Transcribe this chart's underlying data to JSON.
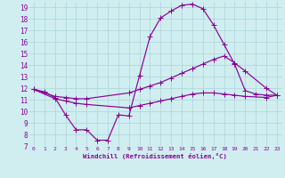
{
  "xlabel": "Windchill (Refroidissement éolien,°C)",
  "xlim": [
    -0.5,
    23.5
  ],
  "ylim": [
    7,
    19.5
  ],
  "xticks": [
    0,
    1,
    2,
    3,
    4,
    5,
    6,
    7,
    8,
    9,
    10,
    11,
    12,
    13,
    14,
    15,
    16,
    17,
    18,
    19,
    20,
    21,
    22,
    23
  ],
  "yticks": [
    7,
    8,
    9,
    10,
    11,
    12,
    13,
    14,
    15,
    16,
    17,
    18,
    19
  ],
  "bg_color": "#d0eef0",
  "line_color": "#880099",
  "grid_color": "#b0d8dc",
  "line1_x": [
    0,
    1,
    2,
    3,
    4,
    5,
    6,
    7,
    8,
    9,
    10,
    11,
    12,
    13,
    14,
    15,
    16,
    17,
    18,
    19,
    20,
    21,
    22,
    23
  ],
  "line1_y": [
    11.9,
    11.7,
    11.2,
    9.7,
    8.4,
    8.4,
    7.5,
    7.5,
    9.7,
    9.6,
    13.1,
    16.5,
    18.1,
    18.7,
    19.2,
    19.3,
    18.9,
    17.5,
    15.8,
    14.1,
    11.8,
    11.5,
    11.4,
    11.4
  ],
  "line2_x": [
    0,
    2,
    3,
    4,
    5,
    9,
    10,
    11,
    12,
    13,
    14,
    15,
    16,
    17,
    18,
    19,
    20,
    22,
    23
  ],
  "line2_y": [
    11.9,
    11.3,
    11.2,
    11.1,
    11.1,
    11.6,
    11.9,
    12.2,
    12.5,
    12.9,
    13.3,
    13.7,
    14.1,
    14.5,
    14.8,
    14.2,
    13.5,
    12.0,
    11.4
  ],
  "line3_x": [
    0,
    2,
    3,
    4,
    5,
    9,
    10,
    11,
    12,
    13,
    14,
    15,
    16,
    17,
    18,
    19,
    20,
    22,
    23
  ],
  "line3_y": [
    11.9,
    11.1,
    10.9,
    10.7,
    10.6,
    10.3,
    10.5,
    10.7,
    10.9,
    11.1,
    11.3,
    11.5,
    11.6,
    11.6,
    11.5,
    11.4,
    11.3,
    11.2,
    11.4
  ]
}
